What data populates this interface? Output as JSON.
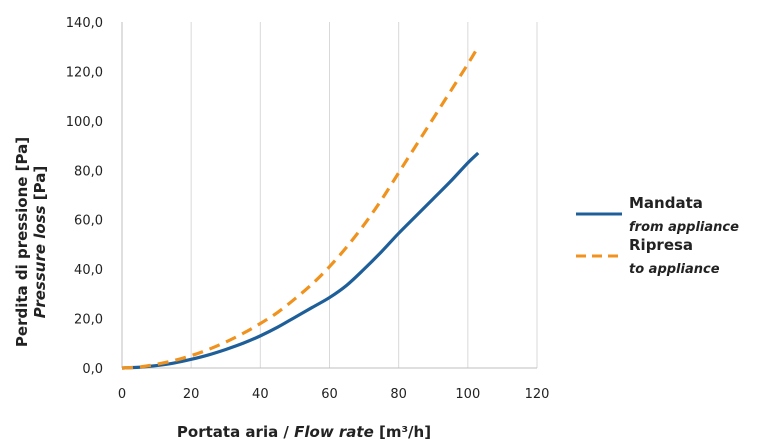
{
  "chart_data": {
    "type": "line",
    "xlabel": {
      "main": "Portata aria / ",
      "italic": "Flow rate",
      "unit": " [m³/h]"
    },
    "ylabel": {
      "line1": "Perdita di pressione [Pa]",
      "line2_italic": "Pressure loss",
      "line2_unit": " [Pa]"
    },
    "xlim": [
      0,
      120
    ],
    "ylim": [
      0,
      140
    ],
    "x_ticks": [
      "0",
      "20",
      "40",
      "60",
      "80",
      "100",
      "120"
    ],
    "y_ticks": [
      "0,0",
      "20,0",
      "40,0",
      "60,0",
      "80,0",
      "100,0",
      "120,0",
      "140,0"
    ],
    "grid": "vertical",
    "legend_position": "right",
    "series": [
      {
        "name": "Mandata",
        "subtitle": "from appliance",
        "color": "#1f5f99",
        "style": "solid",
        "x": [
          0,
          5,
          10,
          15,
          20,
          25,
          30,
          35,
          40,
          45,
          50,
          55,
          60,
          65,
          70,
          75,
          80,
          85,
          90,
          95,
          100,
          103
        ],
        "y": [
          0,
          0.3,
          1,
          2,
          3.5,
          5.3,
          7.5,
          10,
          13,
          16.5,
          20.5,
          24.5,
          28.5,
          33.5,
          40,
          47,
          54.5,
          61.5,
          68.5,
          75.5,
          83,
          87
        ]
      },
      {
        "name": "Ripresa",
        "subtitle": "to appliance",
        "color": "#f0921e",
        "style": "dashed",
        "x": [
          0,
          5,
          10,
          15,
          20,
          25,
          30,
          35,
          40,
          45,
          50,
          55,
          60,
          65,
          70,
          75,
          80,
          85,
          90,
          95,
          100,
          103
        ],
        "y": [
          0,
          0.4,
          1.5,
          3,
          5,
          7.5,
          10.5,
          14,
          18,
          22.5,
          28,
          34,
          41,
          49,
          58,
          68,
          79,
          90,
          101,
          112,
          123,
          130
        ]
      }
    ]
  }
}
